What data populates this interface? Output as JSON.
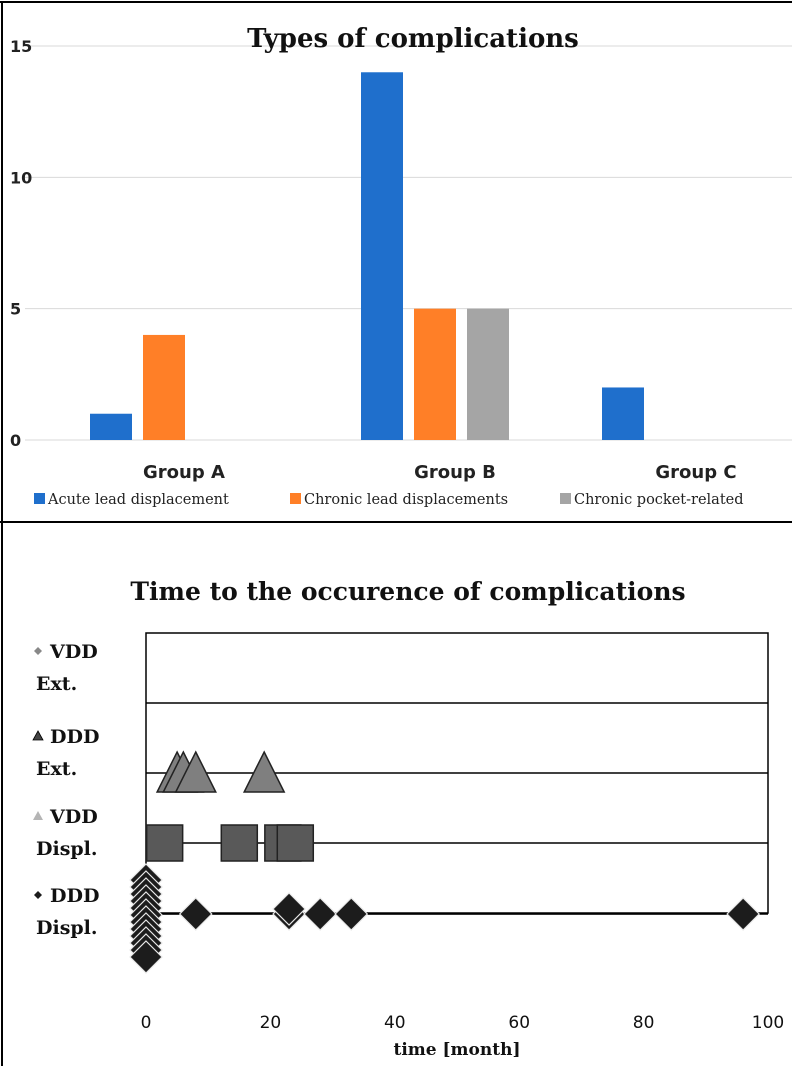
{
  "chart_data": [
    {
      "type": "bar",
      "title": "Types of complications",
      "categories": [
        "Group A",
        "Group B",
        "Group C"
      ],
      "y_ticks": [
        "0",
        "5",
        "10",
        "15"
      ],
      "ylim": [
        0,
        15
      ],
      "grid": true,
      "legend_position": "bottom",
      "series": [
        {
          "name": "Acute lead displacement",
          "values": [
            1,
            14,
            2
          ],
          "color": "#1f6fcc"
        },
        {
          "name": "Chronic lead displacements",
          "values": [
            4,
            5,
            0
          ],
          "color": "#ff7f27"
        },
        {
          "name": "Chronic pocket-related",
          "values": [
            0,
            5,
            0
          ],
          "color": "#a5a5a5"
        }
      ]
    },
    {
      "type": "scatter",
      "title": "Time to the occurence of complications",
      "xlabel": "time [month]",
      "xlim": [
        0,
        100
      ],
      "x_ticks": [
        "0",
        "20",
        "40",
        "60",
        "80",
        "100"
      ],
      "grid": true,
      "legend_position": "left",
      "series": [
        {
          "label_line1": "VDD",
          "label_line2": "Ext.",
          "legend_marker": "diamond",
          "marker": "diamond",
          "color": "#888888",
          "x": []
        },
        {
          "label_line1": "DDD",
          "label_line2": "Ext.",
          "legend_marker": "triangle",
          "marker": "triangle",
          "color": "#7f7f7f",
          "x": [
            5,
            6,
            8,
            19
          ]
        },
        {
          "label_line1": "VDD",
          "label_line2": "Displ.",
          "legend_marker": "triangle",
          "marker": "square",
          "color": "#595959",
          "x": [
            3,
            15,
            22,
            24
          ]
        },
        {
          "label_line1": "DDD",
          "label_line2": "Displ.",
          "legend_marker": "diamond",
          "marker": "diamond",
          "color": "#1c1c1c",
          "x": [
            0,
            0,
            0,
            0,
            0,
            0,
            0,
            0,
            0,
            0,
            0,
            0,
            8,
            23,
            23,
            28,
            33,
            96
          ]
        }
      ]
    }
  ]
}
